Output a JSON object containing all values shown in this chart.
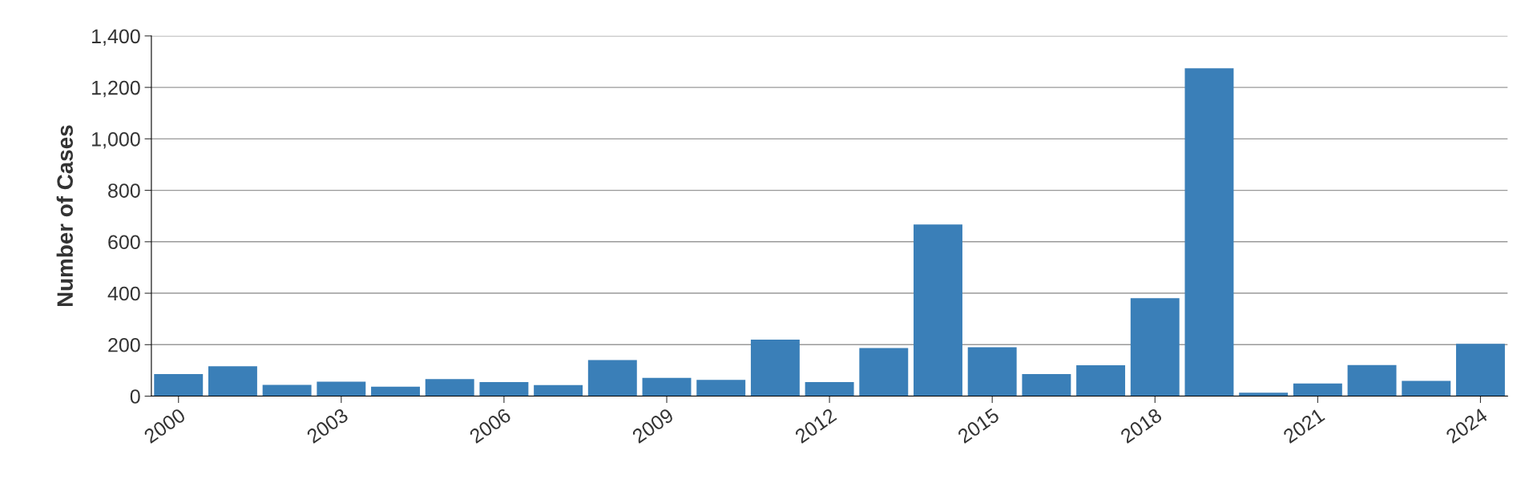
{
  "chart_data": {
    "type": "bar",
    "ylabel": "Number of Cases",
    "x": [
      2000,
      2001,
      2002,
      2003,
      2004,
      2005,
      2006,
      2007,
      2008,
      2009,
      2010,
      2011,
      2012,
      2013,
      2014,
      2015,
      2016,
      2017,
      2018,
      2019,
      2020,
      2021,
      2022,
      2023,
      2024
    ],
    "values": [
      86,
      116,
      44,
      56,
      37,
      66,
      55,
      43,
      140,
      71,
      63,
      220,
      55,
      187,
      667,
      190,
      86,
      120,
      381,
      1274,
      13,
      49,
      121,
      59,
      203
    ],
    "color": "#3a7fb8",
    "xlim": [
      1999.5,
      2024.5
    ],
    "xticks": [
      2000,
      2003,
      2006,
      2009,
      2012,
      2015,
      2018,
      2021,
      2024
    ],
    "ylim": [
      0,
      1400
    ],
    "yticks": [
      {
        "value": 0,
        "label": "0"
      },
      {
        "value": 200,
        "label": "200"
      },
      {
        "value": 400,
        "label": "400"
      },
      {
        "value": 600,
        "label": "600"
      },
      {
        "value": 800,
        "label": "800"
      },
      {
        "value": 1000,
        "label": "1,000"
      },
      {
        "value": 1200,
        "label": "1,200"
      },
      {
        "value": 1400,
        "label": "1,400"
      }
    ],
    "grid": "y"
  }
}
